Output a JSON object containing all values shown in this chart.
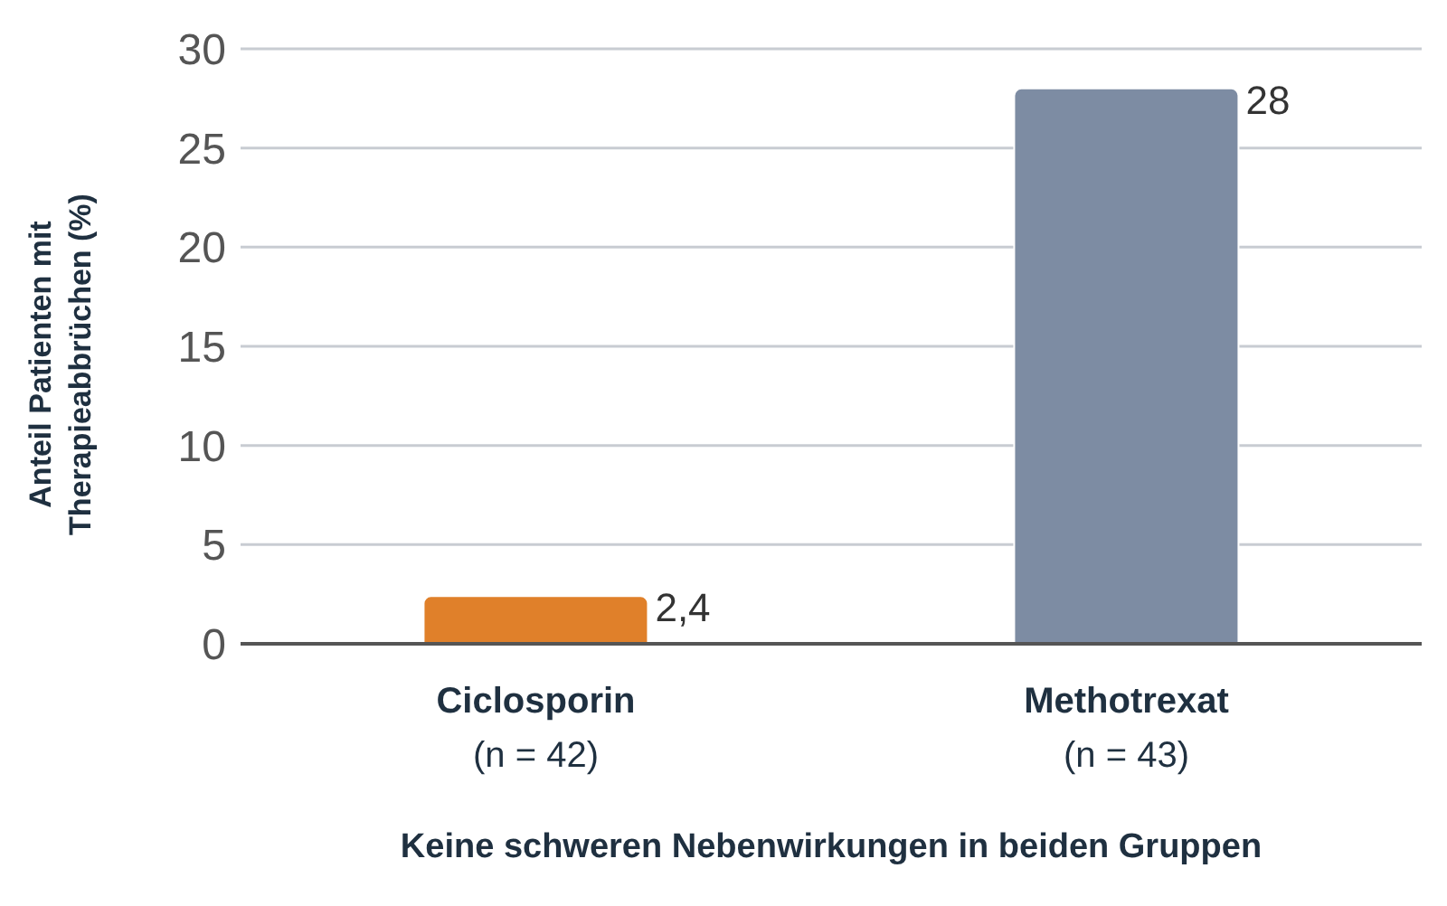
{
  "chart_data": {
    "type": "bar",
    "categories": [
      "Ciclosporin\n(n = 42)",
      "Methotrexat\n(n = 43)"
    ],
    "values": [
      2.4,
      28
    ],
    "colors": [
      "#e0802a",
      "#7d8ca3"
    ],
    "value_labels": [
      "2,4",
      "28"
    ],
    "ylabel": "Anteil Patienten mit\nTherapieabbrüchen (%)",
    "xlabel": "Keine schweren Nebenwirkungen in beiden Gruppen",
    "ylim": [
      0,
      30
    ],
    "yticks": [
      0,
      5,
      10,
      15,
      20,
      25,
      30
    ],
    "grid": "y"
  }
}
